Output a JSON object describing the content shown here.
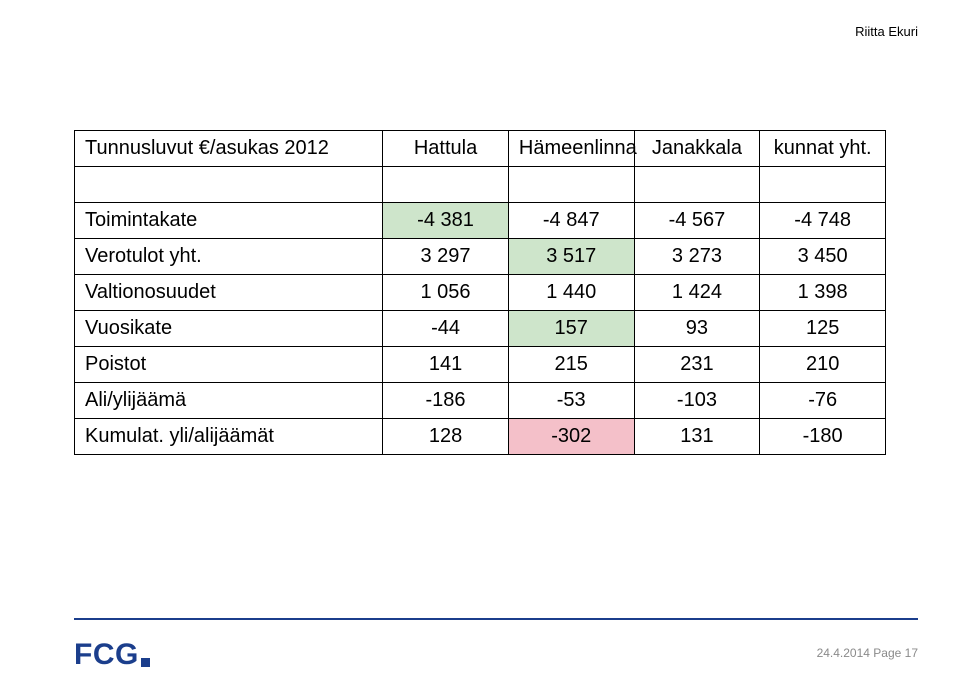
{
  "header": {
    "author": "Riitta Ekuri"
  },
  "table": {
    "columns": [
      "Tunnusluvut €/asukas 2012",
      "Hattula",
      "Hämeenlinna",
      "Janakkala",
      "kunnat yht."
    ],
    "rows": [
      {
        "label": "Toimintakate",
        "values": [
          "-4 381",
          "-4 847",
          "-4 567",
          "-4 748"
        ],
        "highlight": [
          0,
          null,
          null,
          null
        ]
      },
      {
        "label": "Verotulot yht.",
        "values": [
          "3 297",
          "3 517",
          "3 273",
          "3 450"
        ],
        "highlight": [
          null,
          0,
          null,
          null
        ]
      },
      {
        "label": "Valtionosuudet",
        "values": [
          "1 056",
          "1 440",
          "1 424",
          "1 398"
        ],
        "highlight": [
          null,
          null,
          null,
          null
        ]
      },
      {
        "label": "Vuosikate",
        "values": [
          "-44",
          "157",
          "93",
          "125"
        ],
        "highlight": [
          null,
          0,
          null,
          null
        ]
      },
      {
        "label": "Poistot",
        "values": [
          "141",
          "215",
          "231",
          "210"
        ],
        "highlight": [
          null,
          null,
          null,
          null
        ]
      },
      {
        "label": "Ali/ylijäämä",
        "values": [
          "-186",
          "-53",
          "-103",
          "-76"
        ],
        "highlight": [
          null,
          null,
          null,
          null
        ]
      },
      {
        "label": "Kumulat. yli/alijäämät",
        "values": [
          "128",
          "-302",
          "131",
          "-180"
        ],
        "highlight": [
          null,
          1,
          null,
          null
        ]
      }
    ],
    "highlight_colors": [
      "#cee5cb",
      "#f4c0c9"
    ]
  },
  "footer": {
    "logo_text": "FCG",
    "date_page": "24.4.2014 Page 17"
  }
}
